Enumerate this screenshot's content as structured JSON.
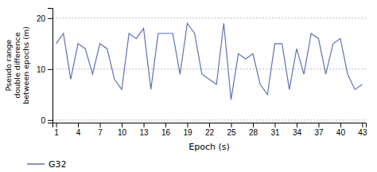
{
  "chart_data": {
    "type": "line",
    "x_label": "Epoch (s)",
    "y_label": "Pseudo range\ndouble difference\nbetween epochs (m)",
    "x": [
      1,
      2,
      3,
      4,
      5,
      6,
      7,
      8,
      9,
      10,
      11,
      12,
      13,
      14,
      15,
      16,
      17,
      18,
      19,
      20,
      21,
      22,
      23,
      24,
      25,
      26,
      27,
      28,
      29,
      30,
      31,
      32,
      33,
      34,
      35,
      36,
      37,
      38,
      39,
      40,
      41,
      42,
      43
    ],
    "series": [
      {
        "name": "G32",
        "color": "#6070b8",
        "values": [
          15,
          17,
          8,
          15,
          14,
          9,
          15,
          14,
          8,
          6,
          17,
          16,
          18,
          6,
          17,
          17,
          17,
          9,
          19,
          17,
          9,
          8,
          7,
          19,
          4,
          13,
          12,
          13,
          7,
          5,
          15,
          15,
          6,
          14,
          9,
          17,
          16,
          9,
          15,
          16,
          9,
          6,
          7
        ]
      }
    ],
    "xlim": [
      0.5,
      43.5
    ],
    "xticks": [
      1,
      4,
      7,
      10,
      13,
      16,
      19,
      22,
      25,
      28,
      31,
      34,
      37,
      40,
      43
    ],
    "ylim": [
      -0.5,
      22
    ],
    "yticks": [
      0,
      10,
      20
    ],
    "grid": true,
    "legend": "bottom"
  }
}
